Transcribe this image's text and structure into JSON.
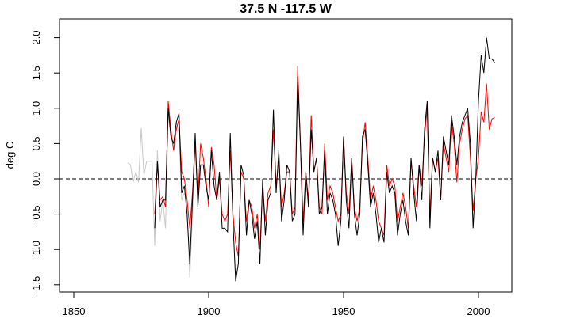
{
  "chart_data": {
    "type": "line",
    "title": "37.5 N  -117.5 W",
    "xlabel": "",
    "ylabel": "deg C",
    "xlim": [
      1845,
      2012
    ],
    "ylim": [
      -1.6,
      2.1
    ],
    "xticks": [
      1850,
      1900,
      1950,
      2000
    ],
    "yticks": [
      -1.5,
      -1.0,
      -0.5,
      0.0,
      0.5,
      1.0,
      1.5,
      2.0
    ],
    "ytick_labels": [
      "-1.5",
      "-1.0",
      "-0.5",
      "0.0",
      "0.5",
      "1.0",
      "1.5",
      "2.0"
    ],
    "reference_line": {
      "y": 0,
      "style": "dashed"
    },
    "series": [
      {
        "name": "gray",
        "color": "#c8c8c8",
        "start_year": 1870,
        "values": [
          0.23,
          0.2,
          -0.05,
          0.1,
          -0.05,
          0.72,
          0.05,
          0.25,
          0.25,
          0.25,
          -0.95,
          0.4,
          -0.6,
          -0.3,
          -0.7,
          0.9,
          0.6,
          0.45,
          0.8,
          0.65,
          -0.3,
          -0.2,
          -0.4,
          -1.4,
          -0.5,
          0.5
        ]
      },
      {
        "name": "red",
        "color": "#ff0000",
        "start_year": 1880,
        "values": [
          -0.5,
          0.25,
          -0.3,
          -0.25,
          -0.4,
          1.1,
          0.7,
          0.4,
          0.7,
          0.85,
          0.1,
          0.0,
          -0.3,
          -0.7,
          -0.2,
          0.5,
          -0.3,
          0.5,
          0.3,
          0.0,
          -0.4,
          0.45,
          0.2,
          -0.3,
          0.0,
          -0.5,
          -0.6,
          -0.5,
          0.4,
          -0.5,
          -0.9,
          -1.1,
          0.1,
          0.0,
          -0.6,
          -0.3,
          -0.4,
          -0.7,
          -0.5,
          -1.0,
          -0.1,
          -0.6,
          -0.2,
          -0.1,
          0.7,
          -0.1,
          0.3,
          -0.4,
          -0.2,
          0.1,
          0.1,
          -0.5,
          -0.4,
          1.6,
          0.5,
          -0.6,
          0.1,
          -0.3,
          0.9,
          0.1,
          0.3,
          -0.4,
          -0.5,
          0.5,
          -0.3,
          -0.1,
          -0.2,
          -0.4,
          -0.6,
          -0.5,
          0.6,
          -0.2,
          -0.5,
          0.3,
          -0.4,
          -0.6,
          -0.4,
          0.5,
          0.8,
          0.3,
          -0.3,
          -0.1,
          -0.3,
          -0.6,
          -0.7,
          -0.8,
          0.2,
          -0.1,
          0.0,
          -0.1,
          -0.6,
          -0.4,
          -0.2,
          -0.4,
          -0.7,
          0.25,
          -0.1,
          -0.4,
          0.2,
          -0.1,
          0.6,
          1.0,
          -0.5,
          0.3,
          0.1,
          0.3,
          -0.3,
          0.5,
          0.3,
          0.1,
          0.8,
          0.5,
          -0.05,
          0.5,
          0.7,
          0.85,
          0.9,
          0.3,
          -0.45,
          0.0,
          0.3,
          0.95,
          0.8,
          1.35,
          0.7,
          0.85,
          0.87
        ]
      },
      {
        "name": "black",
        "color": "#000000",
        "start_year": 1880,
        "values": [
          -0.7,
          0.25,
          -0.4,
          -0.3,
          -0.3,
          1.0,
          0.6,
          0.5,
          0.8,
          0.93,
          -0.2,
          -0.1,
          -0.5,
          -1.2,
          -0.3,
          0.65,
          -0.4,
          0.2,
          0.2,
          -0.1,
          -0.3,
          0.4,
          -0.1,
          -0.3,
          0.1,
          -0.7,
          -0.7,
          -0.75,
          0.65,
          -0.6,
          -1.45,
          -1.2,
          0.2,
          0.05,
          -0.8,
          -0.3,
          -0.5,
          -0.85,
          -0.6,
          -1.2,
          0.0,
          -0.8,
          -0.3,
          -0.2,
          0.98,
          -0.2,
          0.4,
          -0.6,
          -0.3,
          0.2,
          0.1,
          -0.6,
          -0.5,
          1.45,
          0.5,
          -0.8,
          0.1,
          -0.4,
          0.7,
          0.1,
          0.3,
          -0.5,
          -0.4,
          0.4,
          -0.5,
          -0.2,
          -0.3,
          -0.5,
          -0.95,
          -0.6,
          0.6,
          -0.3,
          -0.7,
          0.3,
          -0.5,
          -0.8,
          -0.5,
          0.6,
          0.7,
          0.2,
          -0.4,
          -0.2,
          -0.5,
          -0.9,
          -0.7,
          -0.9,
          0.1,
          -0.2,
          -0.1,
          -0.2,
          -0.8,
          -0.5,
          -0.3,
          -0.6,
          -0.8,
          0.3,
          -0.2,
          -0.6,
          0.2,
          -0.3,
          0.7,
          1.1,
          -0.7,
          0.3,
          0.1,
          0.4,
          -0.3,
          0.6,
          0.4,
          0.2,
          0.9,
          0.6,
          0.2,
          0.6,
          0.8,
          0.9,
          1.0,
          0.5,
          -0.7,
          0.0,
          1.1,
          1.75,
          1.5,
          2.0,
          1.7,
          1.7,
          1.65
        ]
      }
    ]
  }
}
